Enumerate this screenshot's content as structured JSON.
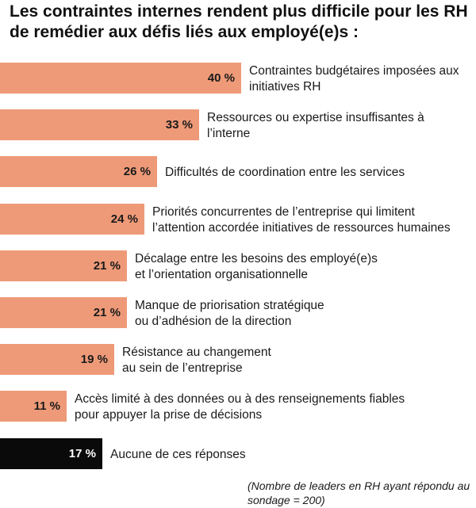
{
  "chart_data": {
    "type": "bar",
    "orientation": "horizontal",
    "title": "Les contraintes internes rendent plus difficile pour les RH de remédier aux défis liés aux employé(e)s :",
    "categories": [
      [
        "Contraintes budgétaires imposées aux",
        "initiatives RH"
      ],
      [
        "Ressources ou expertise insuffisantes à",
        "l’interne"
      ],
      [
        "Difficultés de coordination entre les services"
      ],
      [
        "Priorités concurrentes de l’entreprise qui limitent",
        "l’attention accordée initiatives de ressources humaines"
      ],
      [
        "Décalage entre les besoins des employé(e)s",
        "et l’orientation organisationnelle"
      ],
      [
        "Manque de priorisation stratégique",
        "ou d’adhésion de la direction"
      ],
      [
        "Résistance au changement",
        "au sein de l’entreprise"
      ],
      [
        "Accès limité à des données ou à des renseignements fiables",
        "pour appuyer la prise de décisions"
      ],
      [
        "Aucune de ces réponses"
      ]
    ],
    "values": [
      40,
      33,
      26,
      24,
      21,
      21,
      19,
      11,
      17
    ],
    "value_labels": [
      "40 %",
      "33 %",
      "26 %",
      "24 %",
      "21 %",
      "21 %",
      "19 %",
      "11 %",
      "17 %"
    ],
    "colors": [
      "#ee9a78",
      "#ee9a78",
      "#ee9a78",
      "#ee9a78",
      "#ee9a78",
      "#ee9a78",
      "#ee9a78",
      "#ee9a78",
      "#0a0a0a"
    ],
    "value_label_colors": [
      "#1a1a1a",
      "#1a1a1a",
      "#1a1a1a",
      "#1a1a1a",
      "#1a1a1a",
      "#1a1a1a",
      "#1a1a1a",
      "#1a1a1a",
      "#ffffff"
    ],
    "xlim": [
      0,
      40
    ],
    "grid": false,
    "legend": "none",
    "note": "(Nombre de leaders en RH ayant répondu au sondage = 200)"
  }
}
